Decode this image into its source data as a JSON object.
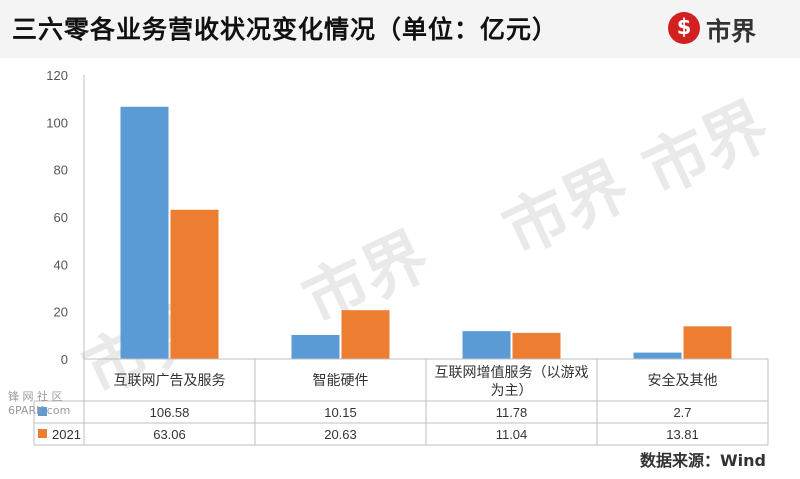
{
  "header": {
    "title": "三六零各业务营收状况变化情况（单位：亿元）",
    "logo_symbol": "$",
    "logo_text": "市界"
  },
  "watermark": "市界",
  "side_watermark": {
    "line1": "锋 网 社 区",
    "line2": "6PARK.com"
  },
  "source": "数据来源：Wind",
  "colors": {
    "series_a": "#5b9bd5",
    "series_b": "#ed7d31",
    "grid": "#d9d9d9",
    "logo": "#d21f1f"
  },
  "chart_data": {
    "type": "bar",
    "categories": [
      "互联网广告及服务",
      "智能硬件",
      "互联网增值服务（以游戏为主）",
      "安全及其他"
    ],
    "category_display": [
      [
        "互联网广告及服务"
      ],
      [
        "智能硬件"
      ],
      [
        "互联网增值服务（以游戏",
        "为主）"
      ],
      [
        "安全及其他"
      ]
    ],
    "series": [
      {
        "name": "",
        "values": [
          106.58,
          10.15,
          11.78,
          2.7
        ],
        "labels": [
          "106.58",
          "10.15",
          "11.78",
          "2.7"
        ]
      },
      {
        "name": "2021",
        "values": [
          63.06,
          20.63,
          11.04,
          13.81
        ],
        "labels": [
          "63.06",
          "20.63",
          "11.04",
          "13.81"
        ]
      }
    ],
    "ylim": [
      0,
      120
    ],
    "yticks": [
      0,
      20,
      40,
      60,
      80,
      100,
      120
    ],
    "grid": false,
    "legend": "data-table"
  }
}
